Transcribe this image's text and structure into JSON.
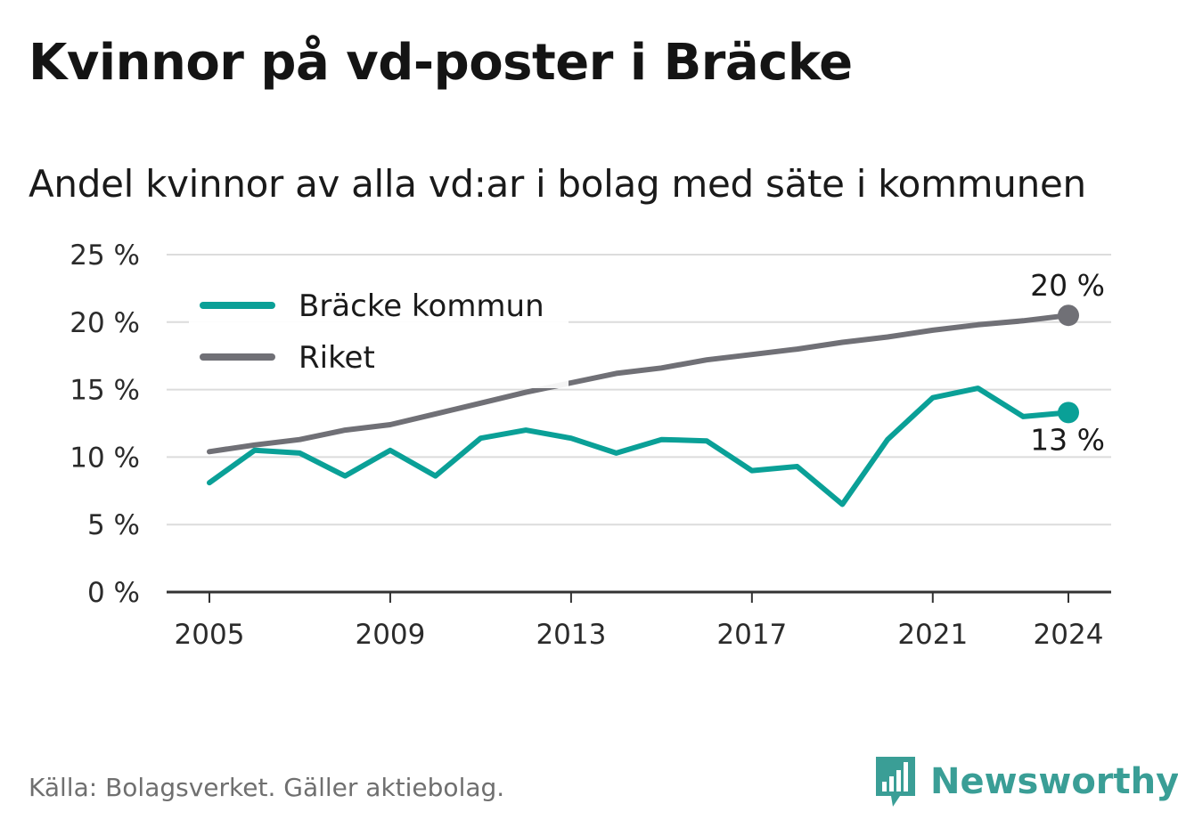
{
  "title": "Kvinnor på vd-poster i Bräcke",
  "subtitle": "Andel kvinnor av alla vd:ar i bolag med säte i kommunen",
  "source": "Källa: Bolagsverket. Gäller aktiebolag.",
  "brand": {
    "name": "Newsworthy",
    "icon": "bar-chart-speech-bubble-icon",
    "color": "#3a9e96"
  },
  "colors": {
    "bracke": "#0aa097",
    "riket": "#707076",
    "grid": "#dcdcdc",
    "axis": "#333333"
  },
  "chart_data": {
    "type": "line",
    "ylim": [
      0,
      25
    ],
    "y_ticks": [
      0,
      5,
      10,
      15,
      20,
      25
    ],
    "y_tick_labels": [
      "0 %",
      "5 %",
      "10 %",
      "15 %",
      "20 %",
      "25 %"
    ],
    "x_ticks": [
      2005,
      2009,
      2013,
      2017,
      2021,
      2024
    ],
    "x_tick_labels": [
      "2005",
      "2009",
      "2013",
      "2017",
      "2021",
      "2024"
    ],
    "xlim": [
      2004,
      2025
    ],
    "grid": true,
    "legend_position": "top-left",
    "x": [
      2005,
      2006,
      2007,
      2008,
      2009,
      2010,
      2011,
      2012,
      2013,
      2014,
      2015,
      2016,
      2017,
      2018,
      2019,
      2020,
      2021,
      2022,
      2023,
      2024
    ],
    "series": [
      {
        "name": "Bräcke kommun",
        "color": "#0aa097",
        "values": [
          8.1,
          10.5,
          10.3,
          8.6,
          10.5,
          8.6,
          11.4,
          12.0,
          11.4,
          10.3,
          11.3,
          11.2,
          9.0,
          9.3,
          6.5,
          11.3,
          14.4,
          15.1,
          13.0,
          13.3
        ],
        "end_label": "13 %"
      },
      {
        "name": "Riket",
        "color": "#707076",
        "values": [
          10.4,
          10.9,
          11.3,
          12.0,
          12.4,
          13.2,
          14.0,
          14.8,
          15.5,
          16.2,
          16.6,
          17.2,
          17.6,
          18.0,
          18.5,
          18.9,
          19.4,
          19.8,
          20.1,
          20.5
        ],
        "end_label": "20 %"
      }
    ]
  }
}
